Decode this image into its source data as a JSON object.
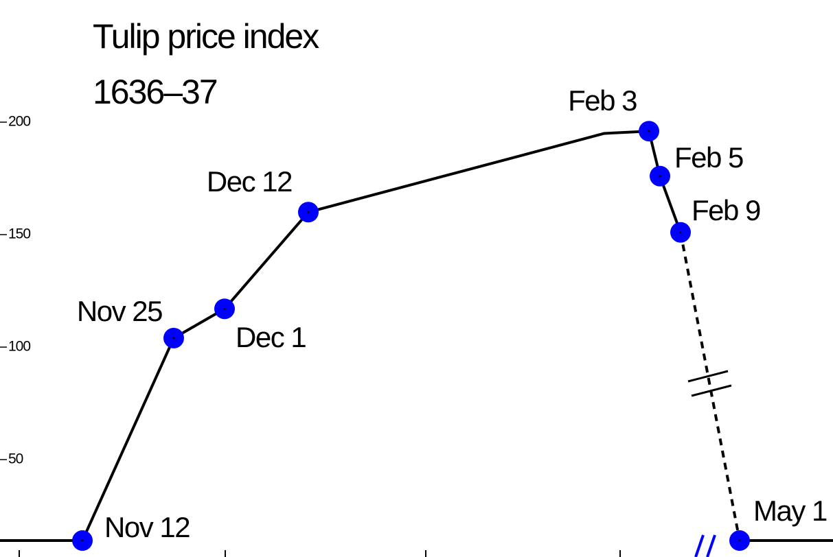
{
  "chart_data": {
    "type": "line",
    "title": "Tulip price index",
    "subtitle": "1636–37",
    "categories": [
      null,
      "Nov 12",
      "Nov 25",
      "Dec 1",
      "Dec 12",
      null,
      "Feb 3",
      "Feb 5",
      "Feb 9",
      "May 1",
      null
    ],
    "values": [
      14,
      14,
      104,
      117,
      160,
      195,
      196,
      176,
      151,
      14,
      14
    ],
    "color": "#000000",
    "marker_color": "#0000ff",
    "ylim": [
      6.7,
      254.3
    ],
    "yticks": [
      50,
      100,
      150,
      200
    ]
  }
}
